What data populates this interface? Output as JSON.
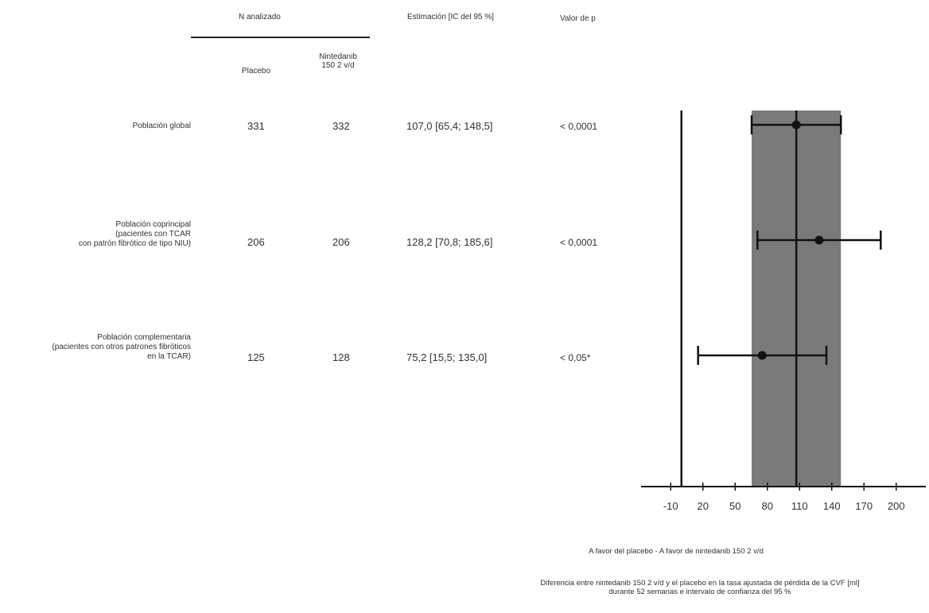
{
  "headers": {
    "n_analyzed": "N analizado",
    "placebo": "Placebo",
    "nintedanib_line1": "Nintedanib",
    "nintedanib_line2": "150 2 v/d",
    "estimate": "Estimación [IC del 95 %]",
    "pvalue": "Valor de p"
  },
  "rows": [
    {
      "label_lines": [
        "Población global"
      ],
      "placebo": "331",
      "nintedanib": "332",
      "estimate_text": "107,0 [65,4; 148,5]",
      "pvalue": "< 0,0001"
    },
    {
      "label_lines": [
        "Población coprincipal",
        "(pacientes con TCAR",
        "con patrón fibrótico de tipo NIU)"
      ],
      "placebo": "206",
      "nintedanib": "206",
      "estimate_text": "128,2 [70,8; 185,6]",
      "pvalue": "< 0,0001"
    },
    {
      "label_lines": [
        "Población complementaria",
        "(pacientes con otros patrones fibróticos",
        "en la TCAR)"
      ],
      "placebo": "125",
      "nintedanib": "128",
      "estimate_text": "75,2 [15,5; 135,0]",
      "pvalue": "< 0,05*"
    }
  ],
  "captions": {
    "favor": "A favor del placebo - A favor de nintedanib 150 2 v/d",
    "xlabel_line1": "Diferencia entre nintedanib 150 2 v/d y el placebo en la tasa ajustada de pérdida de la CVF [ml]",
    "xlabel_line2": "durante 52 semanas e intervalo de confianza del 95 %"
  },
  "chart_data": {
    "type": "forest",
    "xlim": [
      -25,
      215
    ],
    "xticks": [
      -10,
      20,
      50,
      80,
      110,
      140,
      170,
      200
    ],
    "null_line": 0,
    "overall_band": [
      65.4,
      148.5
    ],
    "overall_line": 107.0,
    "points": [
      {
        "estimate": 107.0,
        "low": 65.4,
        "high": 148.5
      },
      {
        "estimate": 128.2,
        "low": 70.8,
        "high": 185.6
      },
      {
        "estimate": 75.2,
        "low": 15.5,
        "high": 135.0
      }
    ]
  }
}
